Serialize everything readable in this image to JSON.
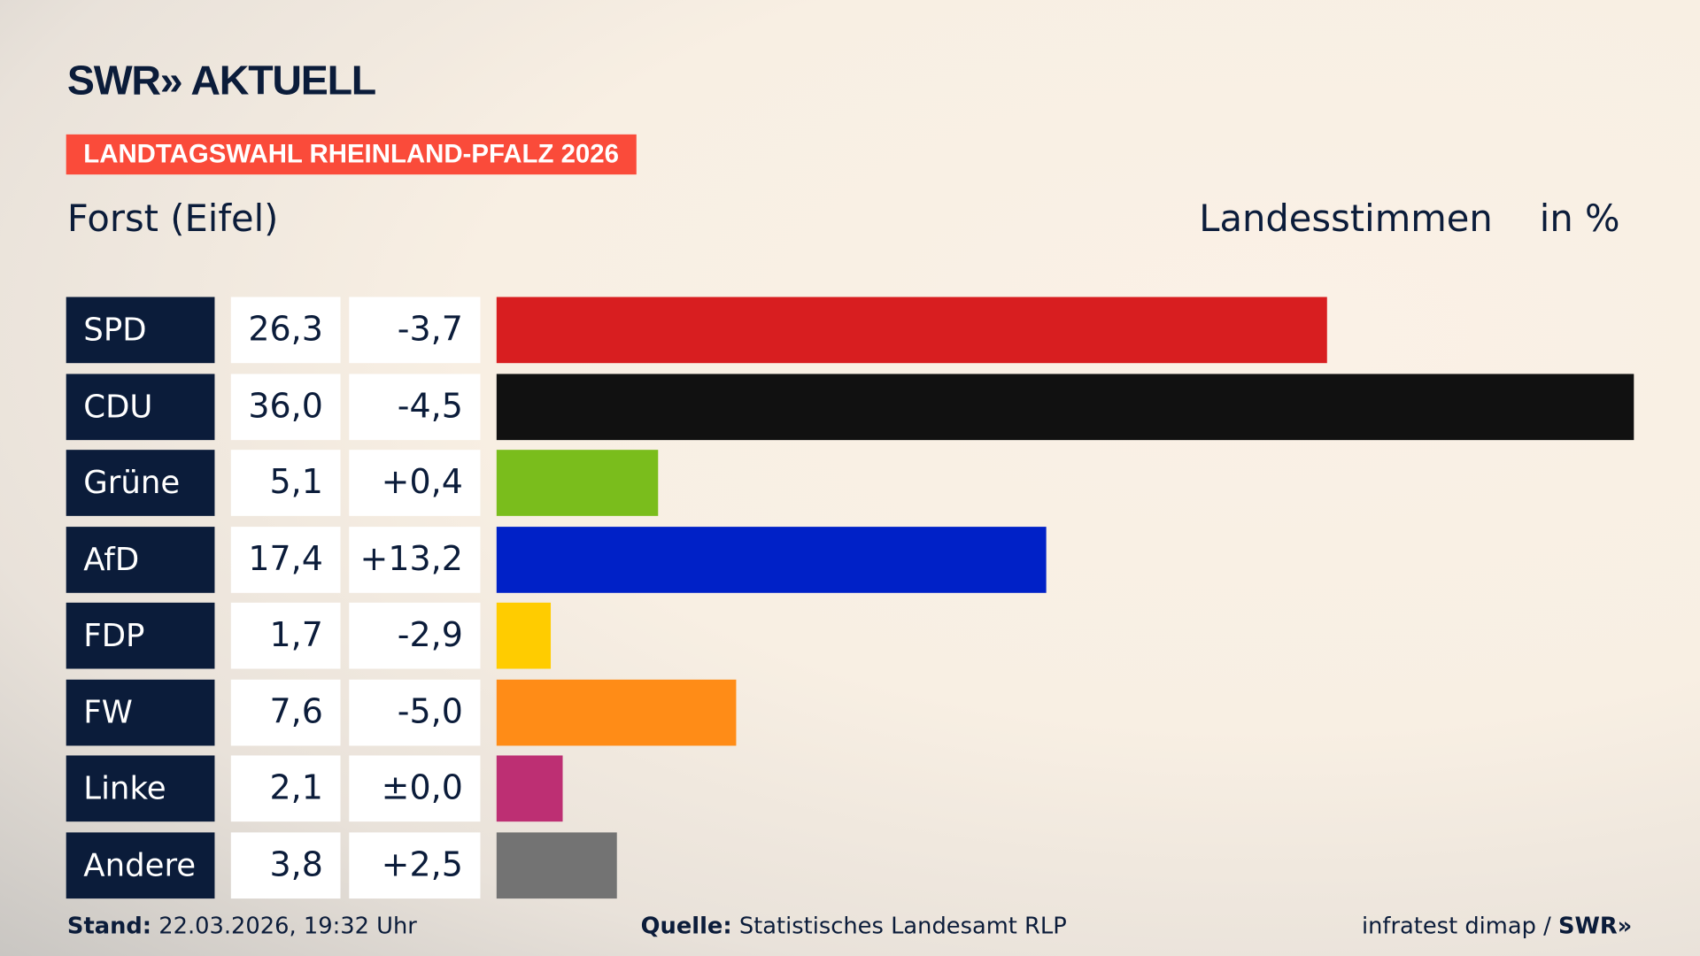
{
  "header": {
    "logo": "SWR» AKTUELL",
    "badge": "LANDTAGSWAHL RHEINLAND-PFALZ 2026",
    "place": "Forst (Eifel)",
    "vote_type": "Landesstimmen",
    "unit": "in %"
  },
  "colors": {
    "accent": "#fa4b3a",
    "navy": "#0b1c3a"
  },
  "chart_data": {
    "type": "bar",
    "orientation": "horizontal",
    "xlim": [
      0,
      36.0
    ],
    "categories": [
      "SPD",
      "CDU",
      "Grüne",
      "AfD",
      "FDP",
      "FW",
      "Linke",
      "Andere"
    ],
    "values": [
      26.3,
      36.0,
      5.1,
      17.4,
      1.7,
      7.6,
      2.1,
      3.8
    ],
    "value_labels": [
      "26,3",
      "36,0",
      "5,1",
      "17,4",
      "1,7",
      "7,6",
      "2,1",
      "3,8"
    ],
    "diff_labels": [
      "-3,7",
      "-4,5",
      "+0,4",
      "+13,2",
      "-2,9",
      "-5,0",
      "±0,0",
      "+2,5"
    ],
    "colors": [
      "#d81e20",
      "#111111",
      "#7abd1c",
      "#0021c7",
      "#ffcc00",
      "#ff8c17",
      "#bd2f73",
      "#737373"
    ]
  },
  "footer": {
    "stand_label": "Stand:",
    "stand_value": "22.03.2026, 19:32 Uhr",
    "source_label": "Quelle:",
    "source_value": "Statistisches Landesamt RLP",
    "credit": "infratest dimap /",
    "credit_logo": "SWR»"
  }
}
